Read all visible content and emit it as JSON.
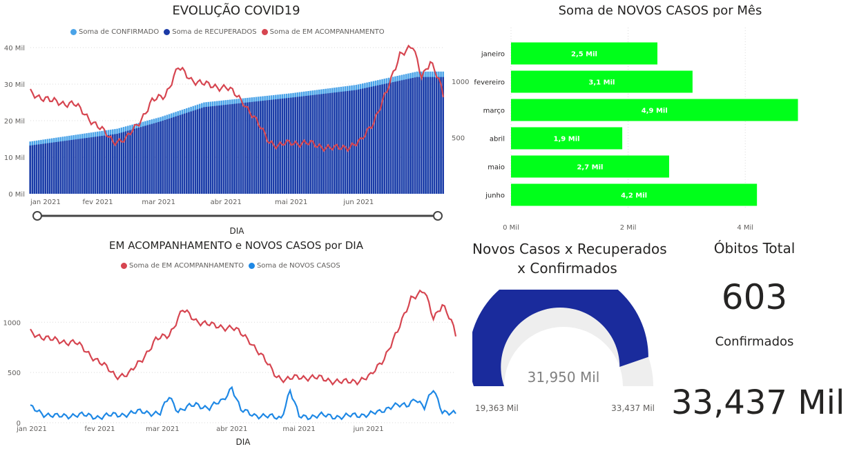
{
  "colors": {
    "confirmado": "#4aa3e8",
    "recuperados": "#1b3aa6",
    "acompanhamento": "#d64550",
    "novos_casos": "#1e88e5",
    "month_bar": "#00ff1a",
    "gauge_fill": "#1a2b9c",
    "gauge_bg": "#eeeeee",
    "slider": "#444444"
  },
  "chart_data": [
    {
      "id": "evolucao",
      "type": "bar",
      "title": "EVOLUÇÃO COVID19",
      "xlabel": "DIA",
      "legend_position": "top",
      "series_names": [
        "Soma de CONFIRMADO",
        "Soma de RECUPERADOS",
        "Soma de EM ACOMPANHAMENTO"
      ],
      "x_ticks": [
        "jan 2021",
        "fev 2021",
        "mar 2021",
        "abr 2021",
        "mai 2021",
        "jun 2021"
      ],
      "y_left_ticks": [
        "0 Mil",
        "10 Mil",
        "20 Mil",
        "30 Mil",
        "40 Mil"
      ],
      "y_left_lim": [
        0,
        40000
      ],
      "y_right_ticks": [
        "500",
        "1000"
      ],
      "y_right_lim": [
        0,
        1300
      ],
      "grid": true,
      "bars_start": {
        "confirmado": 14300,
        "recuperados": 13200
      },
      "bars_end": {
        "confirmado": 33437,
        "recuperados": 31950
      },
      "bar_knees": [
        {
          "day": 0,
          "confirmado": 14300,
          "recuperados": 13200
        },
        {
          "day": 40,
          "confirmado": 17800,
          "recuperados": 16400
        },
        {
          "day": 60,
          "confirmado": 21000,
          "recuperados": 19800
        },
        {
          "day": 80,
          "confirmado": 25000,
          "recuperados": 23700
        },
        {
          "day": 120,
          "confirmado": 27500,
          "recuperados": 26300
        },
        {
          "day": 150,
          "confirmado": 29800,
          "recuperados": 28400
        },
        {
          "day": 178,
          "confirmado": 33437,
          "recuperados": 31950
        }
      ],
      "acompanhamento_knots": [
        {
          "day": 0,
          "value": 900
        },
        {
          "day": 10,
          "value": 820
        },
        {
          "day": 20,
          "value": 800
        },
        {
          "day": 30,
          "value": 620
        },
        {
          "day": 38,
          "value": 470
        },
        {
          "day": 44,
          "value": 480
        },
        {
          "day": 50,
          "value": 640
        },
        {
          "day": 56,
          "value": 820
        },
        {
          "day": 62,
          "value": 880
        },
        {
          "day": 68,
          "value": 1120
        },
        {
          "day": 74,
          "value": 1020
        },
        {
          "day": 82,
          "value": 960
        },
        {
          "day": 90,
          "value": 950
        },
        {
          "day": 98,
          "value": 820
        },
        {
          "day": 104,
          "value": 640
        },
        {
          "day": 110,
          "value": 470
        },
        {
          "day": 114,
          "value": 420
        },
        {
          "day": 120,
          "value": 460
        },
        {
          "day": 130,
          "value": 440
        },
        {
          "day": 140,
          "value": 400
        },
        {
          "day": 146,
          "value": 420
        },
        {
          "day": 152,
          "value": 460
        },
        {
          "day": 158,
          "value": 650
        },
        {
          "day": 164,
          "value": 900
        },
        {
          "day": 170,
          "value": 1250
        },
        {
          "day": 176,
          "value": 1300
        },
        {
          "day": 180,
          "value": 1050
        },
        {
          "day": 184,
          "value": 1180
        },
        {
          "day": 188,
          "value": 1000
        },
        {
          "day": 190,
          "value": 870
        }
      ]
    },
    {
      "id": "novos_mes",
      "type": "bar",
      "title": "Soma de NOVOS CASOS por Mês",
      "orientation": "horizontal",
      "categories": [
        "janeiro",
        "fevereiro",
        "março",
        "abril",
        "maio",
        "junho"
      ],
      "values": [
        2500,
        3100,
        4900,
        1900,
        2700,
        4200
      ],
      "data_labels": [
        "2,5 Mil",
        "3,1 Mil",
        "4,9 Mil",
        "1,9 Mil",
        "2,7 Mil",
        "4,2 Mil"
      ],
      "x_ticks": [
        "0 Mil",
        "2 Mil",
        "4 Mil"
      ],
      "xlim": [
        0,
        5000
      ],
      "grid": true
    },
    {
      "id": "por_dia",
      "type": "line",
      "title": "EM ACOMPANHAMENTO e NOVOS CASOS por DIA",
      "xlabel": "DIA",
      "legend_position": "top",
      "series_names": [
        "Soma de EM ACOMPANHAMENTO",
        "Soma de NOVOS CASOS"
      ],
      "x_ticks": [
        "jan 2021",
        "fev 2021",
        "mar 2021",
        "abr 2021",
        "mai 2021",
        "jun 2021"
      ],
      "y_ticks": [
        "0",
        "500",
        "1000"
      ],
      "ylim": [
        0,
        1400
      ],
      "grid": true,
      "acompanhamento_knots": [
        {
          "day": 0,
          "value": 900
        },
        {
          "day": 10,
          "value": 820
        },
        {
          "day": 20,
          "value": 800
        },
        {
          "day": 30,
          "value": 620
        },
        {
          "day": 38,
          "value": 470
        },
        {
          "day": 44,
          "value": 480
        },
        {
          "day": 50,
          "value": 640
        },
        {
          "day": 56,
          "value": 820
        },
        {
          "day": 62,
          "value": 880
        },
        {
          "day": 68,
          "value": 1120
        },
        {
          "day": 74,
          "value": 1020
        },
        {
          "day": 82,
          "value": 960
        },
        {
          "day": 90,
          "value": 950
        },
        {
          "day": 98,
          "value": 820
        },
        {
          "day": 104,
          "value": 640
        },
        {
          "day": 110,
          "value": 470
        },
        {
          "day": 114,
          "value": 420
        },
        {
          "day": 120,
          "value": 460
        },
        {
          "day": 130,
          "value": 440
        },
        {
          "day": 140,
          "value": 400
        },
        {
          "day": 146,
          "value": 420
        },
        {
          "day": 152,
          "value": 460
        },
        {
          "day": 158,
          "value": 650
        },
        {
          "day": 164,
          "value": 900
        },
        {
          "day": 170,
          "value": 1250
        },
        {
          "day": 176,
          "value": 1300
        },
        {
          "day": 180,
          "value": 1050
        },
        {
          "day": 184,
          "value": 1180
        },
        {
          "day": 188,
          "value": 1000
        },
        {
          "day": 190,
          "value": 870
        }
      ],
      "novos_casos_knots": [
        {
          "day": 0,
          "value": 150
        },
        {
          "day": 6,
          "value": 90
        },
        {
          "day": 12,
          "value": 60
        },
        {
          "day": 20,
          "value": 80
        },
        {
          "day": 30,
          "value": 60
        },
        {
          "day": 40,
          "value": 80
        },
        {
          "day": 50,
          "value": 110
        },
        {
          "day": 58,
          "value": 90
        },
        {
          "day": 62,
          "value": 260
        },
        {
          "day": 66,
          "value": 120
        },
        {
          "day": 74,
          "value": 180
        },
        {
          "day": 80,
          "value": 150
        },
        {
          "day": 86,
          "value": 220
        },
        {
          "day": 90,
          "value": 360
        },
        {
          "day": 94,
          "value": 120
        },
        {
          "day": 100,
          "value": 80
        },
        {
          "day": 106,
          "value": 60
        },
        {
          "day": 112,
          "value": 50
        },
        {
          "day": 116,
          "value": 320
        },
        {
          "day": 120,
          "value": 60
        },
        {
          "day": 130,
          "value": 70
        },
        {
          "day": 140,
          "value": 60
        },
        {
          "day": 148,
          "value": 80
        },
        {
          "day": 156,
          "value": 100
        },
        {
          "day": 162,
          "value": 180
        },
        {
          "day": 168,
          "value": 160
        },
        {
          "day": 172,
          "value": 250
        },
        {
          "day": 176,
          "value": 150
        },
        {
          "day": 180,
          "value": 330
        },
        {
          "day": 184,
          "value": 120
        },
        {
          "day": 190,
          "value": 80
        }
      ]
    }
  ],
  "gauge": {
    "title_line1": "Novos Casos x Recuperados",
    "title_line2": "x Confirmados",
    "value": 31950,
    "min": 19363,
    "max": 33437,
    "value_label": "31,950 Mil",
    "min_label": "19,363 Mil",
    "max_label": "33,437 Mil"
  },
  "obitos": {
    "title": "Óbitos Total",
    "value": "603"
  },
  "confirmados": {
    "title": "Confirmados",
    "value": "33,437 Mil"
  }
}
